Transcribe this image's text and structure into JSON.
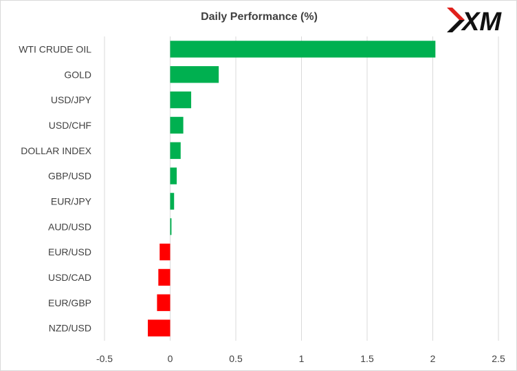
{
  "logo_text": "XM",
  "colors": {
    "positive": "#00b050",
    "negative": "#ff0000",
    "grid": "#d9d9d9",
    "text": "#404040",
    "logo_red": "#e0201b",
    "logo_black": "#111111"
  },
  "chart_data": {
    "type": "bar",
    "orientation": "horizontal",
    "title": "Daily Performance  (%)",
    "xlabel": "",
    "ylabel": "",
    "xlim": [
      -0.5,
      2.5
    ],
    "ticks": [
      -0.5,
      0,
      0.5,
      1,
      1.5,
      2,
      2.5
    ],
    "tick_labels": [
      "-0.5",
      "0",
      "0.5",
      "1",
      "1.5",
      "2",
      "2.5"
    ],
    "grid": true,
    "legend": "none",
    "categories": [
      "WTI CRUDE OIL",
      "GOLD",
      "USD/JPY",
      "USD/CHF",
      "DOLLAR INDEX",
      "GBP/USD",
      "EUR/JPY",
      "AUD/USD",
      "EUR/USD",
      "USD/CAD",
      "EUR/GBP",
      "NZD/USD"
    ],
    "values": [
      2.02,
      0.37,
      0.16,
      0.1,
      0.08,
      0.05,
      0.03,
      0.01,
      -0.08,
      -0.09,
      -0.1,
      -0.17
    ]
  }
}
